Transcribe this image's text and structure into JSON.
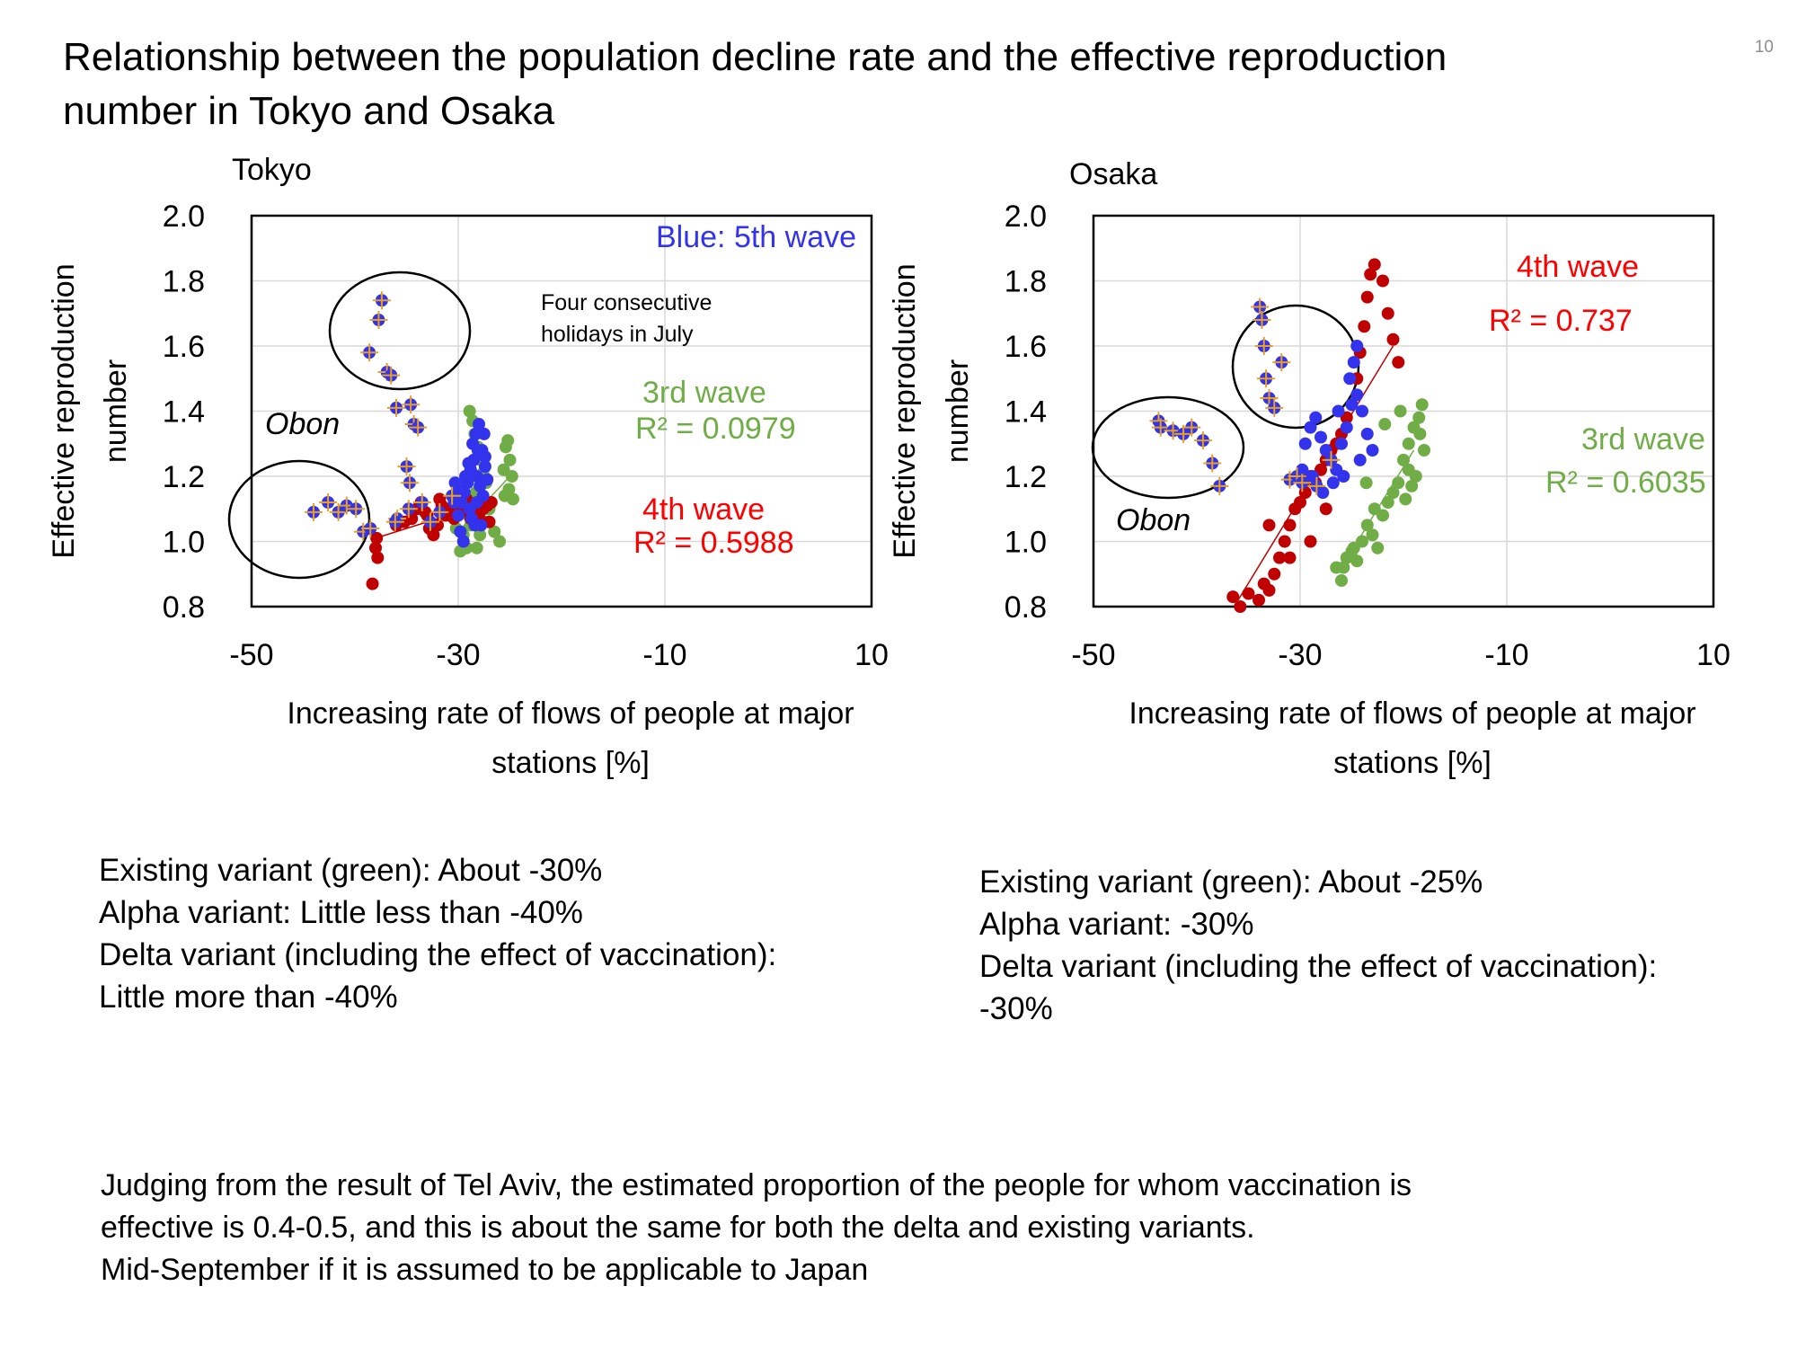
{
  "page_number": "10",
  "title_lines": [
    "Relationship between the population decline rate and the effective reproduction",
    "number in Tokyo and Osaka"
  ],
  "colors": {
    "wave3": "#70ad47",
    "wave4": "#c00000",
    "wave4_label": "#ff0000",
    "wave5": "#3333ee",
    "holiday_mark": "#e8a020",
    "grid": "#d9d9d9"
  },
  "chart_data": [
    {
      "type": "scatter",
      "title": "Tokyo",
      "ylabel_lines": [
        "Effective reproduction",
        "number"
      ],
      "xlabel_lines": [
        "Increasing rate of flows of people at major",
        "stations [%]"
      ],
      "xlim": [
        -50,
        10
      ],
      "ylim": [
        0.8,
        2.0
      ],
      "xticks": [
        "-50",
        "-30",
        "-10",
        "10"
      ],
      "yticks": [
        "0.8",
        "1.0",
        "1.2",
        "1.4",
        "1.6",
        "1.8",
        "2.0"
      ],
      "grid": true,
      "series": [
        {
          "name": "3rd wave",
          "color_key": "wave3",
          "points": [
            [
              -29.8,
              0.97
            ],
            [
              -29.5,
              1.02
            ],
            [
              -29.2,
              0.98
            ],
            [
              -28.8,
              1.05
            ],
            [
              -28.5,
              1.08
            ],
            [
              -28.2,
              0.98
            ],
            [
              -28.7,
              1.12
            ],
            [
              -28.3,
              1.15
            ],
            [
              -27.9,
              1.02
            ],
            [
              -27.5,
              1.06
            ],
            [
              -28.9,
              1.4
            ],
            [
              -28.6,
              1.37
            ],
            [
              -28.4,
              1.33
            ],
            [
              -28.1,
              1.29
            ],
            [
              -27.8,
              1.25
            ],
            [
              -27.6,
              1.21
            ],
            [
              -27.3,
              1.18
            ],
            [
              -27.0,
              1.1
            ],
            [
              -26.5,
              1.03
            ],
            [
              -26.0,
              1.0
            ],
            [
              -25.6,
              1.22
            ],
            [
              -25.4,
              1.29
            ],
            [
              -25.2,
              1.31
            ],
            [
              -25.0,
              1.25
            ],
            [
              -24.8,
              1.2
            ],
            [
              -25.5,
              1.14
            ],
            [
              -25.1,
              1.16
            ],
            [
              -24.7,
              1.13
            ],
            [
              -30.2,
              1.04
            ],
            [
              -29.0,
              1.08
            ]
          ],
          "trend": [
            [
              -30,
              1.03
            ],
            [
              -25,
              1.2
            ]
          ],
          "label": "3rd wave",
          "r2": "R² = 0.0979"
        },
        {
          "name": "4th wave",
          "color_key": "wave4",
          "points": [
            [
              -38.3,
              0.87
            ],
            [
              -38.0,
              0.98
            ],
            [
              -37.9,
              1.01
            ],
            [
              -37.8,
              0.95
            ],
            [
              -36.0,
              1.05
            ],
            [
              -35.2,
              1.06
            ],
            [
              -34.5,
              1.07
            ],
            [
              -34.0,
              1.1
            ],
            [
              -33.6,
              1.12
            ],
            [
              -33.2,
              1.09
            ],
            [
              -32.8,
              1.04
            ],
            [
              -32.4,
              1.02
            ],
            [
              -32.0,
              1.05
            ],
            [
              -31.6,
              1.11
            ],
            [
              -31.2,
              1.08
            ],
            [
              -30.8,
              1.1
            ],
            [
              -30.4,
              1.07
            ],
            [
              -30.0,
              1.09
            ],
            [
              -29.6,
              1.11
            ],
            [
              -29.2,
              1.13
            ],
            [
              -28.8,
              1.07
            ],
            [
              -28.4,
              1.1
            ],
            [
              -28.0,
              1.08
            ],
            [
              -27.6,
              1.1
            ],
            [
              -27.2,
              1.11
            ],
            [
              -26.8,
              1.12
            ],
            [
              -27.0,
              1.06
            ],
            [
              -29.0,
              1.09
            ],
            [
              -31.8,
              1.13
            ],
            [
              -33.0,
              1.08
            ]
          ],
          "trend": [
            [
              -38,
              1.01
            ],
            [
              -27,
              1.12
            ]
          ],
          "label": "4th wave",
          "r2": "R² = 0.5988"
        },
        {
          "name": "5th wave",
          "color_key": "wave5",
          "points": [
            [
              -30.0,
              1.08
            ],
            [
              -29.7,
              1.12
            ],
            [
              -29.4,
              1.15
            ],
            [
              -29.1,
              1.18
            ],
            [
              -28.8,
              1.22
            ],
            [
              -28.5,
              1.25
            ],
            [
              -28.2,
              1.2
            ],
            [
              -27.9,
              1.17
            ],
            [
              -27.6,
              1.14
            ],
            [
              -28.6,
              1.3
            ],
            [
              -28.3,
              1.33
            ],
            [
              -28.0,
              1.36
            ],
            [
              -27.7,
              1.28
            ],
            [
              -27.4,
              1.23
            ],
            [
              -27.2,
              1.19
            ],
            [
              -28.9,
              1.1
            ],
            [
              -28.4,
              1.05
            ],
            [
              -30.4,
              1.12
            ],
            [
              -30.1,
              1.16
            ],
            [
              -29.8,
              1.03
            ],
            [
              -29.5,
              1.0
            ],
            [
              -28.2,
              1.12
            ],
            [
              -27.8,
              1.05
            ],
            [
              -27.4,
              1.26
            ],
            [
              -28.1,
              1.28
            ],
            [
              -29.0,
              1.24
            ],
            [
              -29.3,
              1.2
            ],
            [
              -30.3,
              1.18
            ],
            [
              -27.5,
              1.33
            ],
            [
              -28.7,
              1.07
            ]
          ],
          "label": "Blue: 5th wave"
        },
        {
          "name": "5th wave (holidays)",
          "color_key": "wave5",
          "marker": "crossed",
          "points": [
            [
              -44.0,
              1.09
            ],
            [
              -42.6,
              1.12
            ],
            [
              -41.6,
              1.09
            ],
            [
              -40.8,
              1.11
            ],
            [
              -39.9,
              1.1
            ],
            [
              -39.2,
              1.03
            ],
            [
              -38.5,
              1.04
            ],
            [
              -38.6,
              1.58
            ],
            [
              -37.7,
              1.68
            ],
            [
              -37.4,
              1.74
            ],
            [
              -36.9,
              1.52
            ],
            [
              -36.5,
              1.51
            ],
            [
              -36.0,
              1.41
            ],
            [
              -34.6,
              1.42
            ],
            [
              -34.3,
              1.36
            ],
            [
              -33.9,
              1.35
            ],
            [
              -35.0,
              1.23
            ],
            [
              -34.7,
              1.18
            ],
            [
              -35.9,
              1.07
            ],
            [
              -34.8,
              1.1
            ],
            [
              -33.5,
              1.12
            ],
            [
              -31.8,
              1.09
            ],
            [
              -30.6,
              1.14
            ],
            [
              -32.7,
              1.06
            ],
            [
              -36.1,
              1.06
            ]
          ]
        }
      ],
      "annotations": {
        "holidays": [
          "Four consecutive",
          "holidays in July"
        ],
        "obon": "Obon"
      }
    },
    {
      "type": "scatter",
      "title": "Osaka",
      "ylabel_lines": [
        "Effective reproduction",
        "number"
      ],
      "xlabel_lines": [
        "Increasing rate of flows of people at major",
        "stations [%]"
      ],
      "xlim": [
        -50,
        10
      ],
      "ylim": [
        0.8,
        2.0
      ],
      "xticks": [
        "-50",
        "-30",
        "-10",
        "10"
      ],
      "yticks": [
        "0.8",
        "1.0",
        "1.2",
        "1.4",
        "1.6",
        "1.8",
        "2.0"
      ],
      "grid": true,
      "series": [
        {
          "name": "3rd wave",
          "color_key": "wave3",
          "points": [
            [
              -26.5,
              0.92
            ],
            [
              -26.0,
              0.88
            ],
            [
              -25.5,
              0.95
            ],
            [
              -25.0,
              0.97
            ],
            [
              -24.5,
              0.94
            ],
            [
              -24.0,
              1.0
            ],
            [
              -23.5,
              1.05
            ],
            [
              -23.0,
              1.02
            ],
            [
              -22.5,
              0.98
            ],
            [
              -22.0,
              1.08
            ],
            [
              -21.5,
              1.12
            ],
            [
              -21.0,
              1.15
            ],
            [
              -20.5,
              1.18
            ],
            [
              -20.0,
              1.25
            ],
            [
              -19.5,
              1.3
            ],
            [
              -19.0,
              1.35
            ],
            [
              -18.5,
              1.38
            ],
            [
              -18.2,
              1.42
            ],
            [
              -18.8,
              1.2
            ],
            [
              -19.2,
              1.17
            ],
            [
              -19.8,
              1.13
            ],
            [
              -18.0,
              1.28
            ],
            [
              -18.4,
              1.33
            ],
            [
              -20.3,
              1.4
            ],
            [
              -21.8,
              1.36
            ],
            [
              -24.8,
              0.98
            ],
            [
              -25.8,
              0.92
            ],
            [
              -22.8,
              1.1
            ],
            [
              -23.6,
              1.18
            ],
            [
              -19.5,
              1.22
            ]
          ],
          "trend": [
            [
              -26,
              0.92
            ],
            [
              -19,
              1.28
            ]
          ],
          "label": "3rd wave",
          "r2": "R² = 0.6035"
        },
        {
          "name": "4th wave",
          "color_key": "wave4",
          "points": [
            [
              -36.5,
              0.83
            ],
            [
              -35.8,
              0.8
            ],
            [
              -35.0,
              0.84
            ],
            [
              -34.0,
              0.82
            ],
            [
              -33.5,
              0.87
            ],
            [
              -33.0,
              0.85
            ],
            [
              -32.5,
              0.9
            ],
            [
              -32.0,
              0.95
            ],
            [
              -31.5,
              1.0
            ],
            [
              -31.0,
              1.05
            ],
            [
              -30.5,
              1.1
            ],
            [
              -30.0,
              1.12
            ],
            [
              -29.5,
              1.15
            ],
            [
              -29.0,
              1.2
            ],
            [
              -28.5,
              1.18
            ],
            [
              -28.0,
              1.22
            ],
            [
              -27.5,
              1.25
            ],
            [
              -27.0,
              1.28
            ],
            [
              -26.5,
              1.3
            ],
            [
              -26.0,
              1.33
            ],
            [
              -25.5,
              1.38
            ],
            [
              -25.0,
              1.42
            ],
            [
              -24.5,
              1.5
            ],
            [
              -24.2,
              1.58
            ],
            [
              -23.8,
              1.66
            ],
            [
              -23.5,
              1.75
            ],
            [
              -23.2,
              1.82
            ],
            [
              -22.8,
              1.85
            ],
            [
              -22.0,
              1.8
            ],
            [
              -21.5,
              1.7
            ],
            [
              -21.0,
              1.62
            ],
            [
              -20.5,
              1.55
            ],
            [
              -27.5,
              1.1
            ],
            [
              -29.0,
              1.0
            ],
            [
              -31.0,
              0.95
            ],
            [
              -33.0,
              1.05
            ]
          ],
          "trend": [
            [
              -36,
              0.82
            ],
            [
              -21,
              1.6
            ]
          ],
          "label": "4th wave",
          "r2": "R² = 0.737"
        },
        {
          "name": "5th wave",
          "color_key": "wave5",
          "points": [
            [
              -29.5,
              1.3
            ],
            [
              -29.0,
              1.35
            ],
            [
              -28.5,
              1.38
            ],
            [
              -28.0,
              1.32
            ],
            [
              -27.5,
              1.28
            ],
            [
              -27.0,
              1.25
            ],
            [
              -26.5,
              1.22
            ],
            [
              -26.0,
              1.3
            ],
            [
              -25.5,
              1.35
            ],
            [
              -25.0,
              1.42
            ],
            [
              -24.5,
              1.45
            ],
            [
              -24.0,
              1.4
            ],
            [
              -23.5,
              1.33
            ],
            [
              -23.0,
              1.28
            ],
            [
              -25.2,
              1.5
            ],
            [
              -24.8,
              1.55
            ],
            [
              -24.5,
              1.6
            ],
            [
              -26.8,
              1.18
            ],
            [
              -27.8,
              1.15
            ],
            [
              -28.8,
              1.2
            ],
            [
              -29.8,
              1.22
            ],
            [
              -25.8,
              1.2
            ],
            [
              -24.2,
              1.25
            ],
            [
              -26.3,
              1.4
            ]
          ],
          "label": ""
        },
        {
          "name": "5th wave (holidays)",
          "color_key": "wave5",
          "marker": "crossed",
          "points": [
            [
              -43.7,
              1.37
            ],
            [
              -43.5,
              1.35
            ],
            [
              -42.3,
              1.34
            ],
            [
              -41.3,
              1.33
            ],
            [
              -40.5,
              1.35
            ],
            [
              -39.4,
              1.31
            ],
            [
              -38.5,
              1.24
            ],
            [
              -37.8,
              1.17
            ],
            [
              -33.9,
              1.72
            ],
            [
              -33.7,
              1.68
            ],
            [
              -33.5,
              1.6
            ],
            [
              -33.3,
              1.5
            ],
            [
              -33.0,
              1.44
            ],
            [
              -32.5,
              1.41
            ],
            [
              -31.8,
              1.55
            ],
            [
              -31.0,
              1.19
            ],
            [
              -30.3,
              1.2
            ],
            [
              -29.8,
              1.18
            ],
            [
              -28.4,
              1.17
            ],
            [
              -27.0,
              1.25
            ]
          ]
        }
      ],
      "annotations": {
        "obon": "Obon"
      }
    }
  ],
  "notes_tokyo": [
    "Existing variant (green): About -30%",
    "Alpha variant: Little less than -40%",
    "Delta variant (including the effect of vaccination):",
    "Little more than -40%"
  ],
  "notes_osaka": [
    "Existing variant (green): About -25%",
    "Alpha variant: -30%",
    "Delta variant (including the effect of vaccination):",
    "-30%"
  ],
  "footnote_lines": [
    "Judging from the result of Tel Aviv, the estimated proportion of the people for whom vaccination is",
    "effective is 0.4-0.5, and this is about the same for both the delta and existing variants.",
    "Mid-September if it is assumed to be applicable to Japan"
  ]
}
